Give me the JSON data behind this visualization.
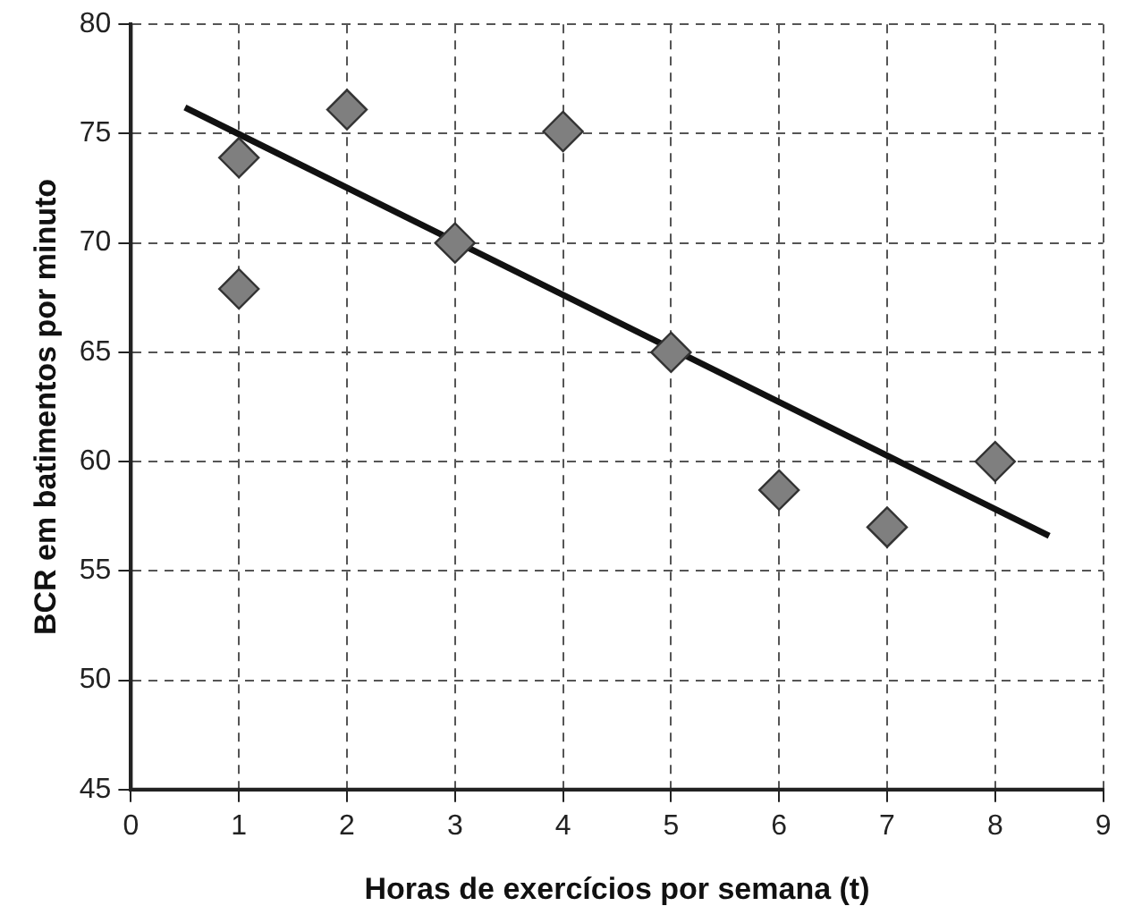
{
  "chart_data": {
    "type": "scatter",
    "xlabel": "Horas de exercícios por semana (t)",
    "ylabel": "BCR em batimentos por minuto",
    "xlim": [
      0,
      9
    ],
    "xticks": [
      0,
      1,
      2,
      3,
      4,
      5,
      6,
      7,
      8,
      9
    ],
    "ylim": [
      45,
      80
    ],
    "yticks": [
      45,
      50,
      55,
      60,
      65,
      70,
      75,
      80
    ],
    "grid": true,
    "series": [
      {
        "marker": "diamond",
        "color": "#7f7f7f",
        "x": [
          1,
          1,
          2,
          3,
          4,
          5,
          6,
          7,
          8
        ],
        "values": [
          73.9,
          67.9,
          76.1,
          70,
          75.1,
          65,
          58.7,
          57,
          60
        ]
      },
      {
        "type": "line",
        "marker": "none",
        "color": "#111111",
        "x": [
          0.5,
          8.5
        ],
        "values": [
          76.2,
          56.6
        ]
      }
    ]
  }
}
